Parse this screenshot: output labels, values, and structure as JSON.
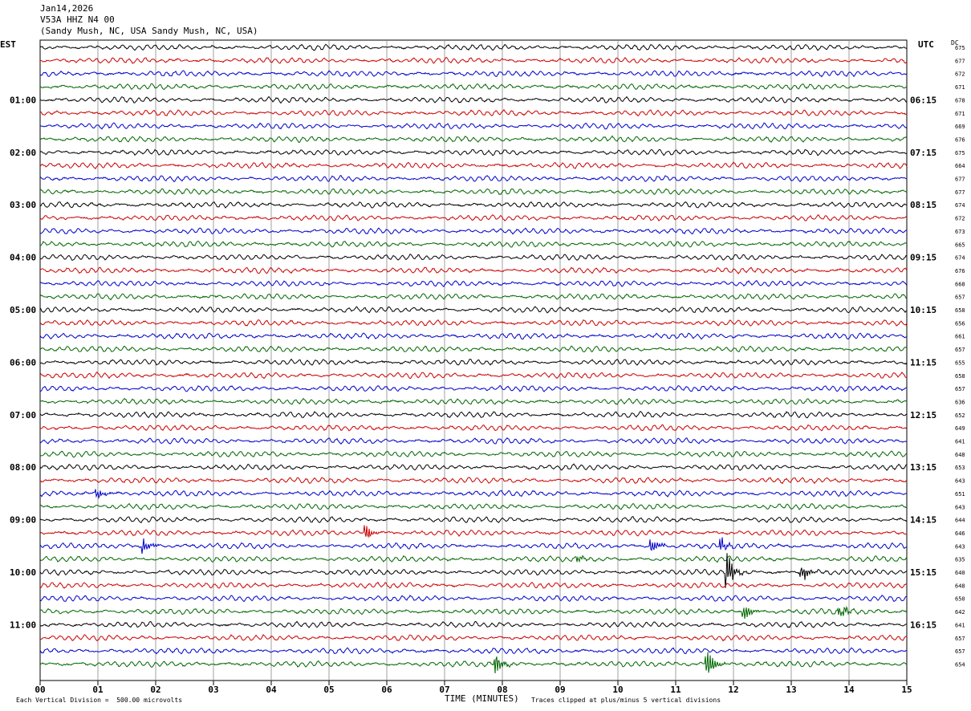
{
  "header": {
    "date": "Jan14,2026",
    "station": "V53A HHZ N4 00",
    "location": "(Sandy Mush, NC, USA Sandy Mush, NC, USA)"
  },
  "left_axis_label": "EST",
  "right_axis_label": "UTC",
  "dc_label": "DC",
  "footer": {
    "scale_note": "Each Vertical Division =  500.00 microvolts",
    "xlabel": "TIME (MINUTES)",
    "clip_note": "Traces clipped at plus/minus 5 vertical divisions"
  },
  "colors": {
    "cycle": [
      "#000000",
      "#cc0000",
      "#0000cc",
      "#006600"
    ],
    "grid": "#888888"
  },
  "chart_data": {
    "type": "line",
    "title": "Jan14,2026 V53A HHZ N4 00 (Sandy Mush, NC, USA Sandy Mush, NC, USA)",
    "xlabel": "TIME (MINUTES)",
    "xlim": [
      0,
      15
    ],
    "x_ticks": [
      "00",
      "01",
      "02",
      "03",
      "04",
      "05",
      "06",
      "07",
      "08",
      "09",
      "10",
      "11",
      "12",
      "13",
      "14",
      "15"
    ],
    "row_count": 48,
    "minutes_per_row": 15,
    "left_hour_labels": [
      {
        "row": 4,
        "label": "01:00"
      },
      {
        "row": 8,
        "label": "02:00"
      },
      {
        "row": 12,
        "label": "03:00"
      },
      {
        "row": 16,
        "label": "04:00"
      },
      {
        "row": 20,
        "label": "05:00"
      },
      {
        "row": 24,
        "label": "06:00"
      },
      {
        "row": 28,
        "label": "07:00"
      },
      {
        "row": 32,
        "label": "08:00"
      },
      {
        "row": 36,
        "label": "09:00"
      },
      {
        "row": 40,
        "label": "10:00"
      },
      {
        "row": 44,
        "label": "11:00"
      }
    ],
    "right_hour_labels": [
      {
        "row": 4,
        "label": "06:15"
      },
      {
        "row": 8,
        "label": "07:15"
      },
      {
        "row": 12,
        "label": "08:15"
      },
      {
        "row": 16,
        "label": "09:15"
      },
      {
        "row": 20,
        "label": "10:15"
      },
      {
        "row": 24,
        "label": "11:15"
      },
      {
        "row": 28,
        "label": "12:15"
      },
      {
        "row": 32,
        "label": "13:15"
      },
      {
        "row": 36,
        "label": "14:15"
      },
      {
        "row": 40,
        "label": "15:15"
      },
      {
        "row": 44,
        "label": "16:15"
      }
    ],
    "dc_offsets": [
      675,
      677,
      672,
      671,
      678,
      671,
      669,
      676,
      675,
      664,
      677,
      677,
      674,
      672,
      673,
      665,
      674,
      676,
      668,
      657,
      658,
      656,
      661,
      657,
      655,
      658,
      657,
      636,
      652,
      649,
      641,
      648,
      653,
      643,
      651,
      643,
      644,
      646,
      643,
      635,
      640,
      648,
      650,
      642,
      641,
      657,
      657,
      654
    ],
    "events": [
      {
        "row": 34,
        "minute": 1.0,
        "amplitude": 0.6
      },
      {
        "row": 37,
        "minute": 5.65,
        "amplitude": 0.8
      },
      {
        "row": 38,
        "minute": 1.8,
        "amplitude": 1.0
      },
      {
        "row": 38,
        "minute": 10.6,
        "amplitude": 1.0
      },
      {
        "row": 38,
        "minute": 11.8,
        "amplitude": 0.7
      },
      {
        "row": 39,
        "minute": 9.3,
        "amplitude": 0.4
      },
      {
        "row": 40,
        "minute": 11.9,
        "amplitude": 2.0
      },
      {
        "row": 40,
        "minute": 13.2,
        "amplitude": 0.9
      },
      {
        "row": 43,
        "minute": 12.2,
        "amplitude": 1.0
      },
      {
        "row": 43,
        "minute": 13.85,
        "amplitude": 0.8
      },
      {
        "row": 47,
        "minute": 7.9,
        "amplitude": 1.1
      },
      {
        "row": 47,
        "minute": 11.55,
        "amplitude": 1.8
      }
    ]
  }
}
